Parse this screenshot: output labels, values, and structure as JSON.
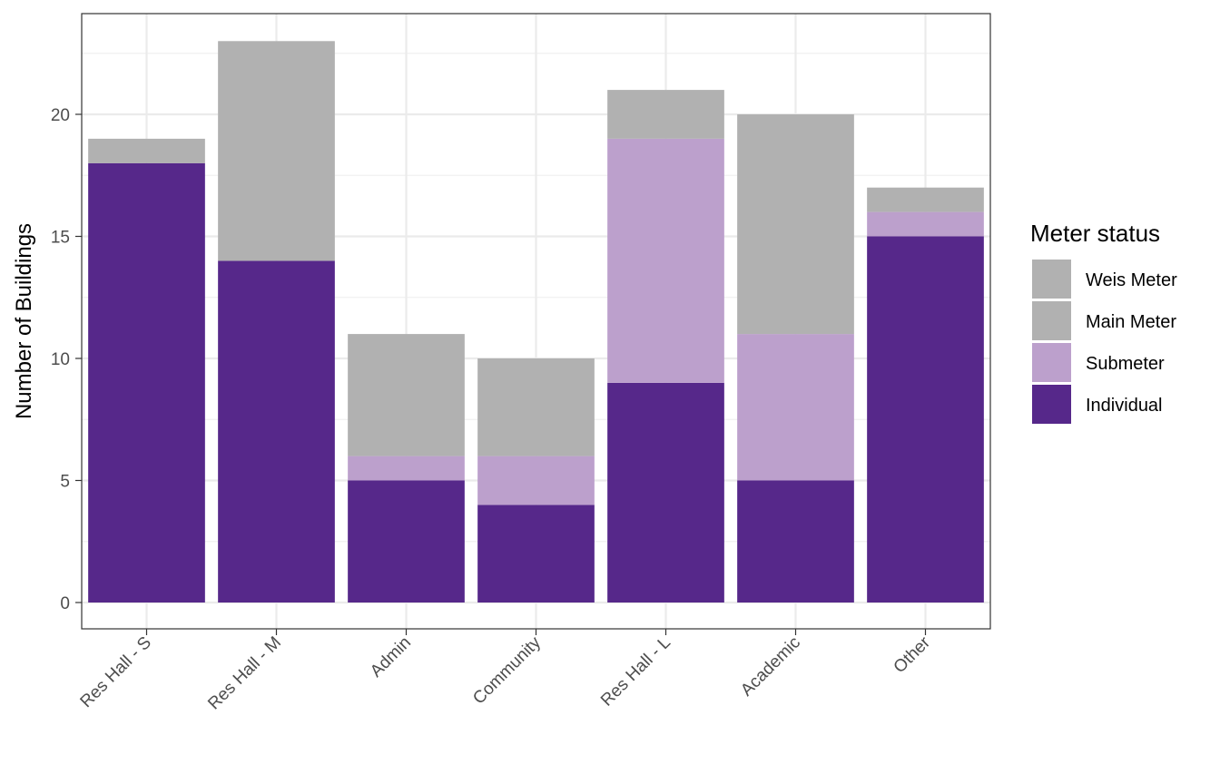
{
  "chart_data": {
    "type": "bar",
    "stacked": true,
    "title": "",
    "xlabel": "",
    "ylabel": "Number of Buildings",
    "ylim": [
      0,
      24
    ],
    "yticks": [
      0,
      5,
      10,
      15,
      20
    ],
    "grid": true,
    "categories": [
      "Res Hall - S",
      "Res Hall - M",
      "Admin",
      "Community",
      "Res Hall - L",
      "Academic",
      "Other"
    ],
    "series": [
      {
        "name": "Individual",
        "color": "#56288a",
        "values": [
          18,
          14,
          5,
          4,
          9,
          5,
          15
        ]
      },
      {
        "name": "Submeter",
        "color": "#bca0cc",
        "values": [
          0,
          0,
          1,
          2,
          10,
          6,
          1
        ]
      },
      {
        "name": "Main Meter",
        "color": "#b1b1b1",
        "values": [
          1,
          9,
          5,
          4,
          2,
          9,
          1
        ]
      },
      {
        "name": "Weis Meter",
        "color": "#b1b1b1",
        "values": [
          0,
          0,
          0,
          0,
          0,
          0,
          0
        ]
      }
    ],
    "legend": {
      "title": "Meter status",
      "position": "right",
      "order": [
        "Weis Meter",
        "Main Meter",
        "Submeter",
        "Individual"
      ]
    }
  }
}
